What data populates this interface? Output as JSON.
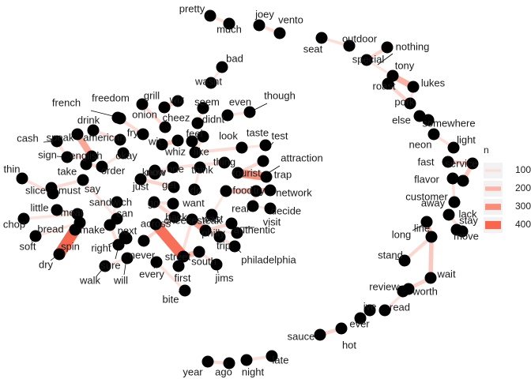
{
  "chart_data": {
    "type": "network",
    "title": "",
    "legend": {
      "title": "n",
      "placement": "right",
      "breaks": [
        100,
        200,
        300,
        400
      ],
      "colors": [
        "#fcdcd6",
        "#fbb4a6",
        "#f98c79",
        "#f8664e"
      ]
    },
    "edge_color_low": "#fde4df",
    "edge_color_high": "#f8664e",
    "nodes": [
      "pretty",
      "much",
      "joey",
      "vento",
      "seat",
      "outdoor",
      "nothing",
      "special",
      "tony",
      "roast",
      "lukes",
      "pork",
      "else",
      "somewhere",
      "neon",
      "light",
      "fast",
      "service",
      "flavor",
      "customer",
      "lack",
      "away",
      "stay",
      "move",
      "long",
      "line",
      "stand",
      "wait",
      "review",
      "worth",
      "ive",
      "read",
      "ever",
      "hot",
      "sauce",
      "late",
      "year",
      "ago",
      "night",
      "bad",
      "wasnt",
      "seem",
      "even",
      "though",
      "didnt",
      "look",
      "taste",
      "test",
      "attraction",
      "thing",
      "tourist",
      "trap",
      "network",
      "food",
      "try",
      "real",
      "decide",
      "authentic",
      "visit",
      "trip",
      "philadelphia",
      "jims",
      "south",
      "street",
      "philly",
      "wast",
      "cheesesteak",
      "back",
      "first",
      "every",
      "bite",
      "never",
      "across",
      "next",
      "sure",
      "will",
      "right",
      "walk",
      "make",
      "can",
      "sandwich",
      "bread",
      "dry",
      "soft",
      "spin",
      "chop",
      "little",
      "meat",
      "slice",
      "thin",
      "must",
      "say",
      "take",
      "order",
      "sign",
      "cash",
      "speak",
      "english",
      "drink",
      "american",
      "french",
      "freedom",
      "grill",
      "onion",
      "cheez",
      "wiz",
      "fry",
      "okay",
      "wit",
      "whiz",
      "feel",
      "like",
      "one",
      "think",
      "just",
      "get",
      "do",
      "go",
      "know",
      "want",
      "now"
    ],
    "edges": [
      {
        "from": "pretty",
        "to": "much",
        "n": 60
      },
      {
        "from": "joey",
        "to": "vento",
        "n": 70
      },
      {
        "from": "outdoor",
        "to": "seat",
        "n": 60
      },
      {
        "from": "nothing",
        "to": "special",
        "n": 90
      },
      {
        "from": "special",
        "to": "tony",
        "n": 40
      },
      {
        "from": "tony",
        "to": "lukes",
        "n": 200
      },
      {
        "from": "roast",
        "to": "pork",
        "n": 90
      },
      {
        "from": "pork",
        "to": "lukes",
        "n": 40
      },
      {
        "from": "else",
        "to": "somewhere",
        "n": 60
      },
      {
        "from": "neon",
        "to": "light",
        "n": 60
      },
      {
        "from": "fast",
        "to": "service",
        "n": 100
      },
      {
        "from": "customer",
        "to": "service",
        "n": 120
      },
      {
        "from": "flavor",
        "to": "lack",
        "n": 50
      },
      {
        "from": "away",
        "to": "stay",
        "n": 60
      },
      {
        "from": "long",
        "to": "line",
        "n": 140
      },
      {
        "from": "stand",
        "to": "line",
        "n": 80
      },
      {
        "from": "line",
        "to": "wait",
        "n": 130
      },
      {
        "from": "wait",
        "to": "worth",
        "n": 100
      },
      {
        "from": "review",
        "to": "read",
        "n": 50
      },
      {
        "from": "ive",
        "to": "ever",
        "n": 40
      },
      {
        "from": "hot",
        "to": "sauce",
        "n": 90
      },
      {
        "from": "late",
        "to": "night",
        "n": 60
      },
      {
        "from": "year",
        "to": "ago",
        "n": 70
      },
      {
        "from": "bad",
        "to": "wasnt",
        "n": 40
      },
      {
        "from": "didnt",
        "to": "seem",
        "n": 40
      },
      {
        "from": "even",
        "to": "though",
        "n": 50
      },
      {
        "from": "taste",
        "to": "test",
        "n": 40
      },
      {
        "from": "tourist",
        "to": "trap",
        "n": 300
      },
      {
        "from": "tourist",
        "to": "attraction",
        "n": 80
      },
      {
        "from": "food",
        "to": "network",
        "n": 150
      },
      {
        "from": "food",
        "to": "try",
        "n": 100
      },
      {
        "from": "real",
        "to": "decide",
        "n": 40
      },
      {
        "from": "authentic",
        "to": "philly",
        "n": 90
      },
      {
        "from": "philly",
        "to": "cheesesteak",
        "n": 250
      },
      {
        "from": "philly",
        "to": "visit",
        "n": 40
      },
      {
        "from": "philly",
        "to": "trip",
        "n": 50
      },
      {
        "from": "south",
        "to": "street",
        "n": 180
      },
      {
        "from": "jims",
        "to": "south",
        "n": 60
      },
      {
        "from": "cheesesteak",
        "to": "first",
        "n": 60
      },
      {
        "from": "cheesesteak",
        "to": "philadelphia",
        "n": 60
      },
      {
        "from": "across",
        "to": "street",
        "n": 400
      },
      {
        "from": "go",
        "to": "back",
        "n": 90
      },
      {
        "from": "every",
        "to": "bite",
        "n": 50
      },
      {
        "from": "never",
        "to": "back",
        "n": 80
      },
      {
        "from": "next",
        "to": "sure",
        "n": 60
      },
      {
        "from": "make",
        "to": "sure",
        "n": 70
      },
      {
        "from": "will",
        "to": "walk",
        "n": 40
      },
      {
        "from": "right",
        "to": "next",
        "n": 40
      },
      {
        "from": "sandwich",
        "to": "make",
        "n": 40
      },
      {
        "from": "bread",
        "to": "soft",
        "n": 50
      },
      {
        "from": "spin",
        "to": "dry",
        "n": 430
      },
      {
        "from": "meat",
        "to": "chop",
        "n": 50
      },
      {
        "from": "little",
        "to": "meat",
        "n": 60
      },
      {
        "from": "thin",
        "to": "slice",
        "n": 60
      },
      {
        "from": "must",
        "to": "say",
        "n": 70
      },
      {
        "from": "take",
        "to": "order",
        "n": 90
      },
      {
        "from": "cash",
        "to": "sign",
        "n": 60
      },
      {
        "from": "speak",
        "to": "english",
        "n": 230
      },
      {
        "from": "sign",
        "to": "english",
        "n": 60
      },
      {
        "from": "american",
        "to": "drink",
        "n": 60
      },
      {
        "from": "french",
        "to": "fry",
        "n": 70
      },
      {
        "from": "freedom",
        "to": "fry",
        "n": 60
      },
      {
        "from": "grill",
        "to": "onion",
        "n": 70
      },
      {
        "from": "cheez",
        "to": "wiz",
        "n": 110
      },
      {
        "from": "whiz",
        "to": "wit",
        "n": 120
      },
      {
        "from": "like",
        "to": "feel",
        "n": 70
      },
      {
        "from": "like",
        "to": "look",
        "n": 60
      },
      {
        "from": "like",
        "to": "taste",
        "n": 70
      },
      {
        "from": "just",
        "to": "get",
        "n": 90
      },
      {
        "from": "one",
        "to": "thing",
        "n": 60
      },
      {
        "from": "think",
        "to": "do",
        "n": 40
      },
      {
        "from": "know",
        "to": "just",
        "n": 40
      },
      {
        "from": "want",
        "to": "go",
        "n": 60
      },
      {
        "from": "now",
        "to": "one",
        "n": 40
      },
      {
        "from": "okay",
        "to": "order",
        "n": 50
      },
      {
        "from": "can",
        "to": "say",
        "n": 40
      },
      {
        "from": "wast",
        "to": "food",
        "n": 40
      },
      {
        "from": "real",
        "to": "try",
        "n": 40
      }
    ]
  }
}
